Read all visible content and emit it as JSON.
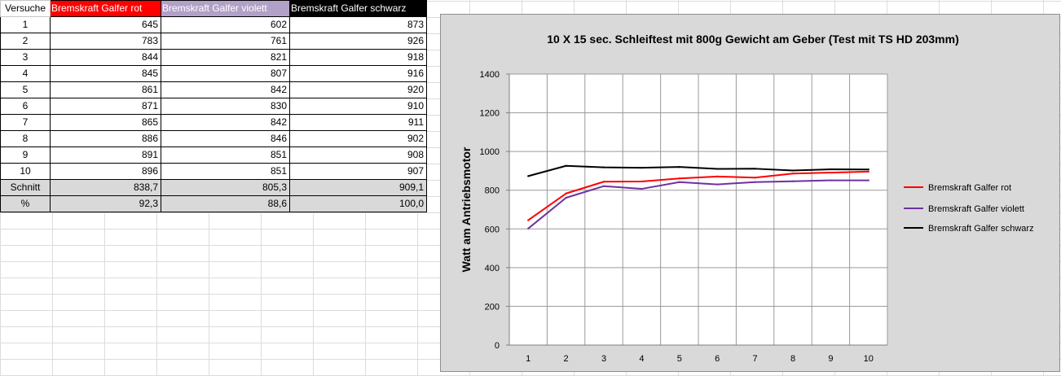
{
  "table": {
    "headers": [
      {
        "label": "Versuche"
      },
      {
        "label": "Bremskraft Galfer rot",
        "bg": "#ff0000",
        "fg": "#ffffff"
      },
      {
        "label": "Bremskraft Galfer violett",
        "bg": "#b1a0c7",
        "fg": "#ffffff"
      },
      {
        "label": "Bremskraft Galfer schwarz",
        "bg": "#000000",
        "fg": "#ffffff"
      }
    ],
    "rows": [
      [
        "1",
        "645",
        "602",
        "873"
      ],
      [
        "2",
        "783",
        "761",
        "926"
      ],
      [
        "3",
        "844",
        "821",
        "918"
      ],
      [
        "4",
        "845",
        "807",
        "916"
      ],
      [
        "5",
        "861",
        "842",
        "920"
      ],
      [
        "6",
        "871",
        "830",
        "910"
      ],
      [
        "7",
        "865",
        "842",
        "911"
      ],
      [
        "8",
        "886",
        "846",
        "902"
      ],
      [
        "9",
        "891",
        "851",
        "908"
      ],
      [
        "10",
        "896",
        "851",
        "907"
      ]
    ],
    "summary": [
      [
        "Schnitt",
        "838,7",
        "805,3",
        "909,1"
      ],
      [
        "%",
        "92,3",
        "88,6",
        "100,0"
      ]
    ]
  },
  "chart_data": {
    "type": "line",
    "title": "10 X 15 sec. Schleiftest mit 800g Gewicht am Geber (Test mit TS HD 203mm)",
    "ylabel": "Watt am Antriebsmotor",
    "xlabel": "",
    "categories": [
      "1",
      "2",
      "3",
      "4",
      "5",
      "6",
      "7",
      "8",
      "9",
      "10"
    ],
    "ylim": [
      0,
      1400
    ],
    "yticks": [
      0,
      200,
      400,
      600,
      800,
      1000,
      1200,
      1400
    ],
    "grid": true,
    "legend_position": "right",
    "series": [
      {
        "name": "Bremskraft Galfer rot",
        "color": "#ff0000",
        "values": [
          645,
          783,
          844,
          845,
          861,
          871,
          865,
          886,
          891,
          896
        ]
      },
      {
        "name": "Bremskraft Galfer violett",
        "color": "#7030a0",
        "values": [
          602,
          761,
          821,
          807,
          842,
          830,
          842,
          846,
          851,
          851
        ]
      },
      {
        "name": "Bremskraft Galfer schwarz",
        "color": "#000000",
        "values": [
          873,
          926,
          918,
          916,
          920,
          910,
          911,
          902,
          908,
          907
        ]
      }
    ]
  }
}
